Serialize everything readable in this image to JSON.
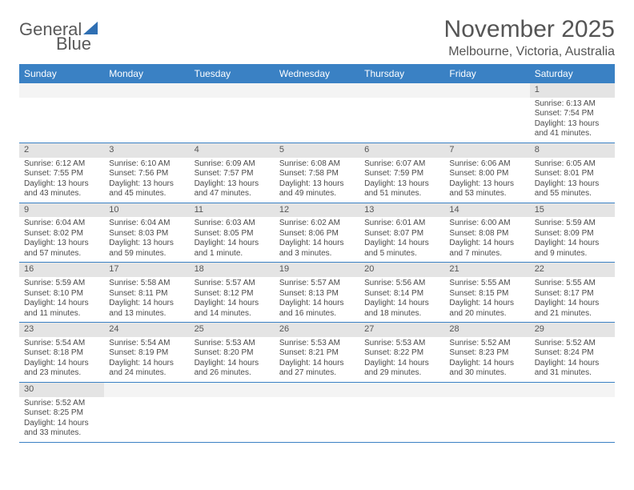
{
  "logo": {
    "text1": "General",
    "text2": "Blue"
  },
  "title": "November 2025",
  "location": "Melbourne, Victoria, Australia",
  "colors": {
    "header_bg": "#3a81c4",
    "header_text": "#ffffff",
    "daynum_bg": "#e4e4e4",
    "border": "#3a81c4",
    "text": "#4a4a4a"
  },
  "day_headers": [
    "Sunday",
    "Monday",
    "Tuesday",
    "Wednesday",
    "Thursday",
    "Friday",
    "Saturday"
  ],
  "weeks": [
    [
      null,
      null,
      null,
      null,
      null,
      null,
      {
        "n": "1",
        "sr": "6:13 AM",
        "ss": "7:54 PM",
        "dl": "13 hours and 41 minutes."
      }
    ],
    [
      {
        "n": "2",
        "sr": "6:12 AM",
        "ss": "7:55 PM",
        "dl": "13 hours and 43 minutes."
      },
      {
        "n": "3",
        "sr": "6:10 AM",
        "ss": "7:56 PM",
        "dl": "13 hours and 45 minutes."
      },
      {
        "n": "4",
        "sr": "6:09 AM",
        "ss": "7:57 PM",
        "dl": "13 hours and 47 minutes."
      },
      {
        "n": "5",
        "sr": "6:08 AM",
        "ss": "7:58 PM",
        "dl": "13 hours and 49 minutes."
      },
      {
        "n": "6",
        "sr": "6:07 AM",
        "ss": "7:59 PM",
        "dl": "13 hours and 51 minutes."
      },
      {
        "n": "7",
        "sr": "6:06 AM",
        "ss": "8:00 PM",
        "dl": "13 hours and 53 minutes."
      },
      {
        "n": "8",
        "sr": "6:05 AM",
        "ss": "8:01 PM",
        "dl": "13 hours and 55 minutes."
      }
    ],
    [
      {
        "n": "9",
        "sr": "6:04 AM",
        "ss": "8:02 PM",
        "dl": "13 hours and 57 minutes."
      },
      {
        "n": "10",
        "sr": "6:04 AM",
        "ss": "8:03 PM",
        "dl": "13 hours and 59 minutes."
      },
      {
        "n": "11",
        "sr": "6:03 AM",
        "ss": "8:05 PM",
        "dl": "14 hours and 1 minute."
      },
      {
        "n": "12",
        "sr": "6:02 AM",
        "ss": "8:06 PM",
        "dl": "14 hours and 3 minutes."
      },
      {
        "n": "13",
        "sr": "6:01 AM",
        "ss": "8:07 PM",
        "dl": "14 hours and 5 minutes."
      },
      {
        "n": "14",
        "sr": "6:00 AM",
        "ss": "8:08 PM",
        "dl": "14 hours and 7 minutes."
      },
      {
        "n": "15",
        "sr": "5:59 AM",
        "ss": "8:09 PM",
        "dl": "14 hours and 9 minutes."
      }
    ],
    [
      {
        "n": "16",
        "sr": "5:59 AM",
        "ss": "8:10 PM",
        "dl": "14 hours and 11 minutes."
      },
      {
        "n": "17",
        "sr": "5:58 AM",
        "ss": "8:11 PM",
        "dl": "14 hours and 13 minutes."
      },
      {
        "n": "18",
        "sr": "5:57 AM",
        "ss": "8:12 PM",
        "dl": "14 hours and 14 minutes."
      },
      {
        "n": "19",
        "sr": "5:57 AM",
        "ss": "8:13 PM",
        "dl": "14 hours and 16 minutes."
      },
      {
        "n": "20",
        "sr": "5:56 AM",
        "ss": "8:14 PM",
        "dl": "14 hours and 18 minutes."
      },
      {
        "n": "21",
        "sr": "5:55 AM",
        "ss": "8:15 PM",
        "dl": "14 hours and 20 minutes."
      },
      {
        "n": "22",
        "sr": "5:55 AM",
        "ss": "8:17 PM",
        "dl": "14 hours and 21 minutes."
      }
    ],
    [
      {
        "n": "23",
        "sr": "5:54 AM",
        "ss": "8:18 PM",
        "dl": "14 hours and 23 minutes."
      },
      {
        "n": "24",
        "sr": "5:54 AM",
        "ss": "8:19 PM",
        "dl": "14 hours and 24 minutes."
      },
      {
        "n": "25",
        "sr": "5:53 AM",
        "ss": "8:20 PM",
        "dl": "14 hours and 26 minutes."
      },
      {
        "n": "26",
        "sr": "5:53 AM",
        "ss": "8:21 PM",
        "dl": "14 hours and 27 minutes."
      },
      {
        "n": "27",
        "sr": "5:53 AM",
        "ss": "8:22 PM",
        "dl": "14 hours and 29 minutes."
      },
      {
        "n": "28",
        "sr": "5:52 AM",
        "ss": "8:23 PM",
        "dl": "14 hours and 30 minutes."
      },
      {
        "n": "29",
        "sr": "5:52 AM",
        "ss": "8:24 PM",
        "dl": "14 hours and 31 minutes."
      }
    ],
    [
      {
        "n": "30",
        "sr": "5:52 AM",
        "ss": "8:25 PM",
        "dl": "14 hours and 33 minutes."
      },
      null,
      null,
      null,
      null,
      null,
      null
    ]
  ],
  "labels": {
    "sunrise": "Sunrise: ",
    "sunset": "Sunset: ",
    "daylight": "Daylight: "
  }
}
